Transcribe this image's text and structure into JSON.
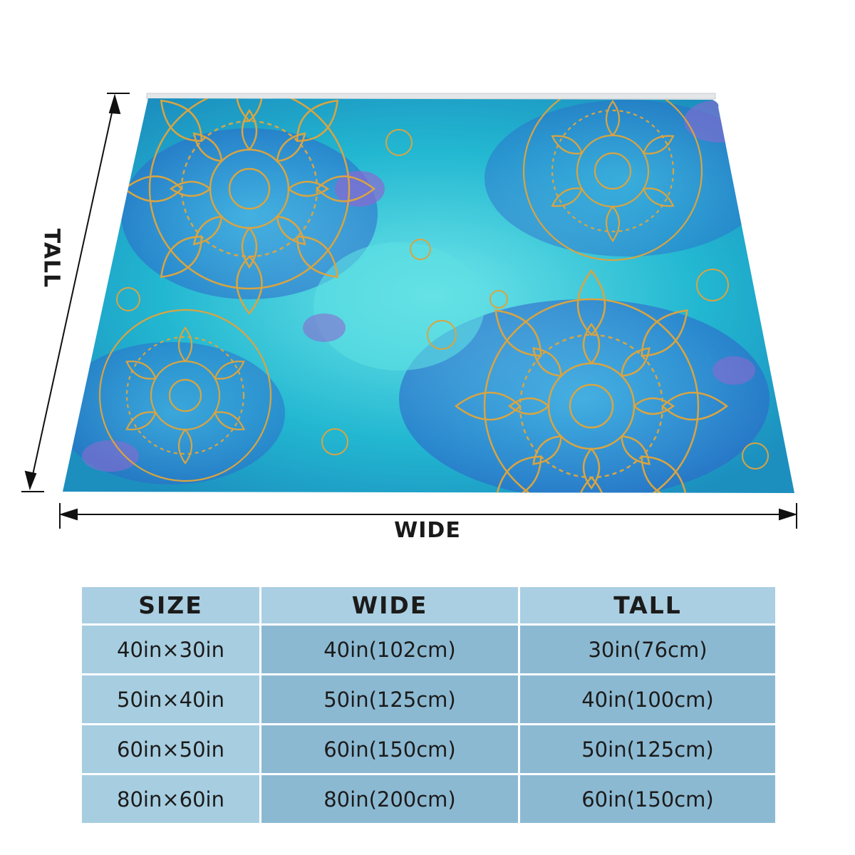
{
  "figure": {
    "wide_label": "WIDE",
    "tall_label": "TALL"
  },
  "table": {
    "headers": [
      "SIZE",
      "WIDE",
      "TALL"
    ],
    "rows": [
      [
        "40in×30in",
        "40in(102cm)",
        "30in(76cm)"
      ],
      [
        "50in×40in",
        "50in(125cm)",
        "40in(100cm)"
      ],
      [
        "60in×50in",
        "60in(150cm)",
        "50in(125cm)"
      ],
      [
        "80in×60in",
        "80in(200cm)",
        "60in(150cm)"
      ]
    ]
  },
  "colors": {
    "header_bg": "#abcfe2",
    "size_col_bg": "#a7cde0",
    "value_col_bg": "#8cb9d2",
    "blanket_turquoise": "#2fc4d6",
    "blanket_blue": "#2f6fd0",
    "blanket_gold": "#d9a441",
    "blanket_purple": "#8a6ad1"
  }
}
